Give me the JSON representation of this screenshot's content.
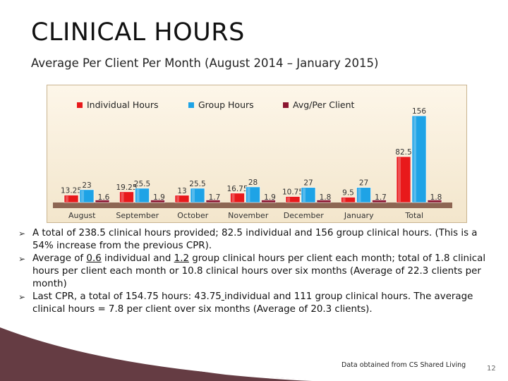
{
  "title": "CLINICAL HOURS",
  "subtitle": "Average Per Client Per Month (August 2014 – January 2015)",
  "chart_data": {
    "type": "bar",
    "categories": [
      "August",
      "September",
      "October",
      "November",
      "December",
      "January",
      "Total"
    ],
    "series": [
      {
        "name": "Individual Hours",
        "color": "#e8191b",
        "values": [
          13.25,
          19.25,
          13,
          16.75,
          10.75,
          9.5,
          82.5
        ],
        "labels": [
          "13.25",
          "19.25",
          "13",
          "16.75",
          "10.75",
          "9.5",
          "82.5"
        ]
      },
      {
        "name": "Group Hours",
        "color": "#1ea3e6",
        "values": [
          23,
          25.5,
          25.5,
          28,
          27,
          27,
          156
        ],
        "labels": [
          "23",
          "25.5",
          "25.5",
          "28",
          "27",
          "27",
          "156"
        ]
      },
      {
        "name": "Avg/Per Client",
        "color": "#8b1530",
        "values": [
          1.6,
          1.9,
          1.7,
          1.9,
          1.8,
          1.7,
          1.8
        ],
        "labels": [
          "1.6",
          "1.9",
          "1.7",
          "1.9",
          "1.8",
          "1.7",
          "1.8"
        ]
      }
    ],
    "ylim": [
      0,
      160
    ],
    "legend": "top",
    "grid": false
  },
  "bullets": [
    {
      "text": "A total of 238.5 clinical hours provided; 82.5 individual and 156 group clinical hours. (This is a 54% increase from the previous CPR)."
    },
    {
      "pre": "Average of ",
      "u1": "0.6",
      "mid": " individual and ",
      "u2": "1.2",
      "post": " group clinical hours per client each month; total of 1.8 clinical hours per client each month or 10.8 clinical hours over six months (Average of 22.3 clients per month)"
    },
    {
      "pre": "Last CPR, a total of 154.75 hours:  43.75",
      "u1": " ",
      "post": "individual and 111 group clinical hours. The average clinical hours  = 7.8 per client over six months (Average of 20.3 clients)."
    }
  ],
  "bullet_marker": "➢",
  "footer_note": "Data obtained from CS Shared Living",
  "page_number": "12"
}
